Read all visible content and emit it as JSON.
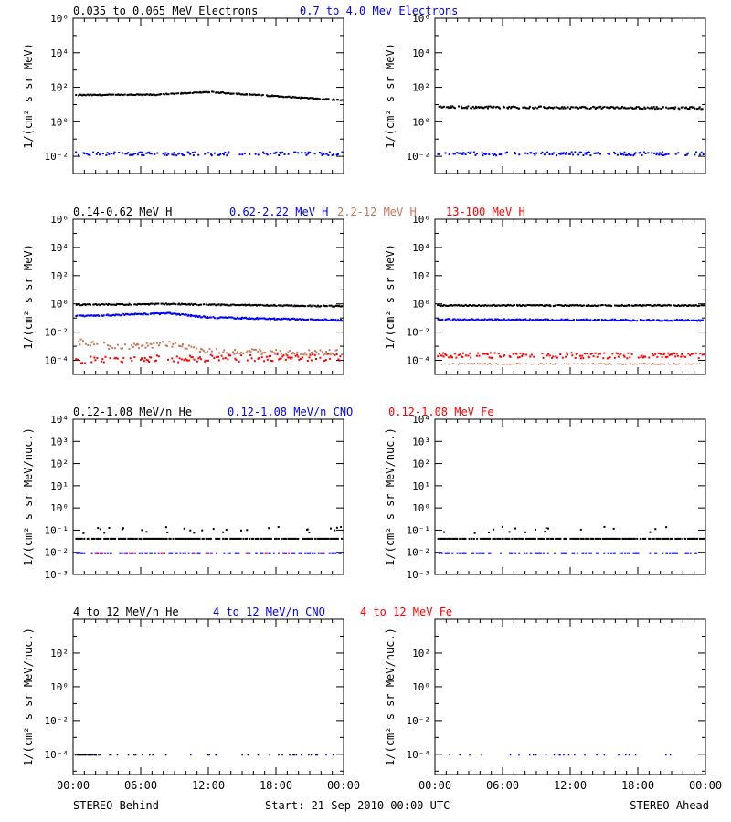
{
  "colors": {
    "axis": "#000000",
    "black": "#000000",
    "blue": "#0000ff",
    "brown": "#c8785a",
    "red": "#ff0000"
  },
  "footer": {
    "left": "STEREO Behind",
    "center": "Start: 21-Sep-2010 00:00 UTC",
    "right": "STEREO Ahead"
  },
  "x_ticks": [
    "00:00",
    "06:00",
    "12:00",
    "18:00",
    "00:00"
  ],
  "chart_data": [
    {
      "id": "electrons",
      "type": "scatter",
      "scale": "log",
      "ylabel": "1/(cm² s sr MeV)",
      "ylim_exp": [
        -3,
        6
      ],
      "tick_exps": [
        -2,
        0,
        2,
        4,
        6
      ],
      "legend": [
        {
          "text": "0.035 to 0.065 MeV Electrons",
          "color": "black"
        },
        {
          "text": "0.7 to 4.0 Mev Electrons",
          "color": "blue"
        }
      ],
      "series": [
        {
          "panel": "behind",
          "color": "black",
          "log_levels": [
            [
              0,
              1.6
            ],
            [
              0.3,
              1.62
            ],
            [
              0.5,
              1.78
            ],
            [
              0.6,
              1.68
            ],
            [
              1,
              1.3
            ]
          ],
          "jitter": 0.03,
          "density": 0.9,
          "point_size": 2
        },
        {
          "panel": "behind",
          "color": "blue",
          "log_levels": [
            [
              0,
              -1.8
            ],
            [
              1,
              -1.8
            ]
          ],
          "jitter": 0.1,
          "density": 0.55,
          "point_size": 2
        },
        {
          "panel": "ahead",
          "color": "black",
          "log_levels": [
            [
              0,
              0.9
            ],
            [
              1,
              0.85
            ]
          ],
          "jitter": 0.06,
          "density": 0.85,
          "point_size": 2
        },
        {
          "panel": "ahead",
          "color": "blue",
          "log_levels": [
            [
              0,
              -1.8
            ],
            [
              1,
              -1.8
            ]
          ],
          "jitter": 0.1,
          "density": 0.55,
          "point_size": 2
        }
      ]
    },
    {
      "id": "protons",
      "type": "scatter",
      "scale": "log",
      "ylabel": "1/(cm² s sr MeV)",
      "ylim_exp": [
        -5,
        6
      ],
      "tick_exps": [
        -4,
        -2,
        0,
        2,
        4,
        6
      ],
      "legend": [
        {
          "text": "0.14-0.62 MeV H",
          "color": "black"
        },
        {
          "text": "0.62-2.22 MeV H",
          "color": "blue"
        },
        {
          "text": "2.2-12 MeV H",
          "color": "brown"
        },
        {
          "text": "13-100 MeV H",
          "color": "red"
        }
      ],
      "series": [
        {
          "panel": "behind",
          "color": "black",
          "log_levels": [
            [
              0,
              0.0
            ],
            [
              0.35,
              0.05
            ],
            [
              0.5,
              0.0
            ],
            [
              1,
              -0.1
            ]
          ],
          "jitter": 0.04,
          "density": 0.95,
          "point_size": 2
        },
        {
          "panel": "behind",
          "color": "blue",
          "log_levels": [
            [
              0,
              -0.8
            ],
            [
              0.35,
              -0.6
            ],
            [
              0.5,
              -0.9
            ],
            [
              1,
              -1.1
            ]
          ],
          "jitter": 0.05,
          "density": 0.95,
          "point_size": 2
        },
        {
          "panel": "behind",
          "color": "brown",
          "log_levels": [
            [
              0,
              -2.6
            ],
            [
              0.15,
              -3.0
            ],
            [
              0.35,
              -2.8
            ],
            [
              0.5,
              -3.3
            ],
            [
              1,
              -3.4
            ]
          ],
          "jitter": 0.2,
          "density": 0.6,
          "point_size": 2
        },
        {
          "panel": "behind",
          "color": "red",
          "log_levels": [
            [
              0,
              -3.9
            ],
            [
              0.5,
              -3.8
            ],
            [
              1,
              -3.7
            ]
          ],
          "jitter": 0.25,
          "density": 0.6,
          "point_size": 2
        },
        {
          "panel": "ahead",
          "color": "black",
          "log_levels": [
            [
              0,
              -0.05
            ],
            [
              1,
              -0.05
            ]
          ],
          "jitter": 0.04,
          "density": 0.95,
          "point_size": 2
        },
        {
          "panel": "ahead",
          "color": "blue",
          "log_levels": [
            [
              0,
              -1.05
            ],
            [
              1,
              -1.1
            ]
          ],
          "jitter": 0.05,
          "density": 0.95,
          "point_size": 2
        },
        {
          "panel": "ahead",
          "color": "red",
          "log_levels": [
            [
              0,
              -3.6
            ],
            [
              1,
              -3.6
            ]
          ],
          "jitter": 0.2,
          "density": 0.7,
          "point_size": 2
        },
        {
          "panel": "ahead",
          "color": "brown",
          "log_levels": [
            [
              0,
              -4.2
            ],
            [
              1,
              -4.2
            ]
          ],
          "jitter": 0.04,
          "density": 0.55,
          "point_size": 1.5
        }
      ]
    },
    {
      "id": "low-heavy",
      "type": "scatter",
      "scale": "log",
      "ylabel": "1/(cm² s sr MeV/nuc.)",
      "ylim_exp": [
        -3,
        4
      ],
      "tick_exps": [
        -3,
        -2,
        -1,
        0,
        1,
        2,
        3,
        4
      ],
      "legend": [
        {
          "text": "0.12-1.08 MeV/n He",
          "color": "black"
        },
        {
          "text": "0.12-1.08 MeV/n CNO",
          "color": "blue"
        },
        {
          "text": "0.12-1.08 MeV Fe",
          "color": "red"
        }
      ],
      "series": [
        {
          "panel": "behind",
          "color": "black",
          "log_levels": [
            [
              0,
              -1.35
            ],
            [
              1,
              -1.35
            ]
          ],
          "jitter": 0.0,
          "density": 0.8,
          "point_size": 2
        },
        {
          "panel": "behind",
          "color": "black",
          "log_levels": [
            [
              0,
              -0.95
            ],
            [
              1,
              -0.95
            ]
          ],
          "jitter": 0.15,
          "density": 0.2,
          "point_size": 2
        },
        {
          "panel": "behind",
          "color": "blue",
          "log_levels": [
            [
              0,
              -2.0
            ],
            [
              1,
              -2.0
            ]
          ],
          "jitter": 0.0,
          "density": 0.45,
          "point_size": 2
        },
        {
          "panel": "behind",
          "color": "red",
          "log_levels": [
            [
              0,
              -2.0
            ],
            [
              1,
              -2.0
            ]
          ],
          "jitter": 0.0,
          "density": 0.1,
          "point_size": 2
        },
        {
          "panel": "ahead",
          "color": "black",
          "log_levels": [
            [
              0,
              -1.35
            ],
            [
              1,
              -1.35
            ]
          ],
          "jitter": 0.0,
          "density": 0.75,
          "point_size": 2
        },
        {
          "panel": "ahead",
          "color": "black",
          "log_levels": [
            [
              0,
              -0.95
            ],
            [
              1,
              -0.95
            ]
          ],
          "jitter": 0.15,
          "density": 0.06,
          "point_size": 2
        },
        {
          "panel": "ahead",
          "color": "blue",
          "log_levels": [
            [
              0,
              -2.0
            ],
            [
              1,
              -2.0
            ]
          ],
          "jitter": 0.0,
          "density": 0.4,
          "point_size": 2
        }
      ]
    },
    {
      "id": "high-heavy",
      "type": "scatter",
      "scale": "log",
      "ylabel": "1/(cm² s sr MeV/nuc.)",
      "ylim_exp": [
        -5.2,
        4
      ],
      "tick_exps": [
        -4,
        -2,
        0,
        2
      ],
      "legend": [
        {
          "text": "4 to 12 MeV/n He",
          "color": "black"
        },
        {
          "text": "4 to 12 MeV/n CNO",
          "color": "blue"
        },
        {
          "text": "4 to 12 MeV Fe",
          "color": "red"
        }
      ],
      "series": [
        {
          "panel": "behind",
          "color": "black",
          "log_levels": [
            [
              0,
              -4.0
            ],
            [
              0.1,
              -4.0
            ]
          ],
          "jitter": 0.0,
          "density": 0.9,
          "point_size": 1.5
        },
        {
          "panel": "behind",
          "color": "black",
          "log_levels": [
            [
              0.1,
              -4.0
            ],
            [
              1,
              -4.0
            ]
          ],
          "jitter": 0.0,
          "density": 0.1,
          "point_size": 1.5
        },
        {
          "panel": "behind",
          "color": "blue",
          "log_levels": [
            [
              0,
              -4.0
            ],
            [
              1,
              -4.0
            ]
          ],
          "jitter": 0.0,
          "density": 0.05,
          "point_size": 1.5
        },
        {
          "panel": "ahead",
          "color": "blue",
          "log_levels": [
            [
              0,
              -4.0
            ],
            [
              1,
              -4.0
            ]
          ],
          "jitter": 0.0,
          "density": 0.12,
          "point_size": 1.5
        }
      ]
    }
  ]
}
